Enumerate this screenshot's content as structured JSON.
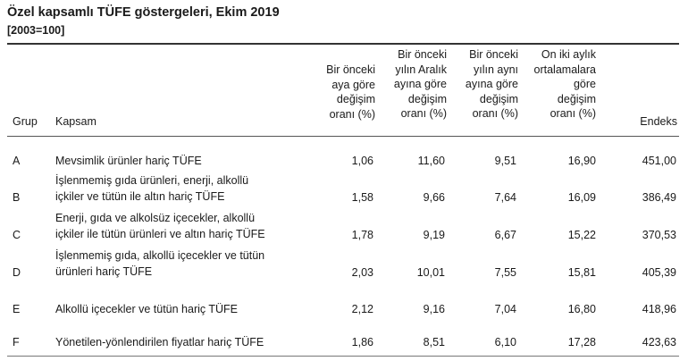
{
  "title": "Özel kapsamlı TÜFE göstergeleri, Ekim 2019",
  "subtitle": "[2003=100]",
  "headers": {
    "grup": "Grup",
    "kapsam": "Kapsam",
    "col1": [
      "Bir önceki",
      "aya göre",
      "değişim",
      "oranı (%)"
    ],
    "col2": [
      "Bir önceki",
      "yılın Aralık",
      "ayına göre",
      "değişim",
      "oranı (%)"
    ],
    "col3": [
      "Bir önceki",
      "yılın aynı",
      "ayına göre",
      "değişim",
      "oranı (%)"
    ],
    "col4": [
      "On iki aylık",
      "ortalamalara",
      "göre",
      "değişim",
      "oranı (%)"
    ],
    "endeks": "Endeks"
  },
  "rows": [
    {
      "grup": "A",
      "kapsam": [
        "Mevsimlik ürünler hariç TÜFE"
      ],
      "v1": "1,06",
      "v2": "11,60",
      "v3": "9,51",
      "v4": "16,90",
      "endeks": "451,00"
    },
    {
      "grup": "B",
      "kapsam": [
        "İşlenmemiş gıda ürünleri, enerji, alkollü",
        "içkiler ve tütün ile altın hariç TÜFE"
      ],
      "v1": "1,58",
      "v2": "9,66",
      "v3": "7,64",
      "v4": "16,09",
      "endeks": "386,49"
    },
    {
      "grup": "C",
      "kapsam": [
        "Enerji, gıda ve alkolsüz içecekler, alkollü",
        "içkiler ile tütün ürünleri ve altın hariç TÜFE"
      ],
      "v1": "1,78",
      "v2": "9,19",
      "v3": "6,67",
      "v4": "15,22",
      "endeks": "370,53"
    },
    {
      "grup": "D",
      "kapsam": [
        "İşlenmemiş gıda, alkollü içecekler ve tütün",
        "ürünleri hariç TÜFE"
      ],
      "v1": "2,03",
      "v2": "10,01",
      "v3": "7,55",
      "v4": "15,81",
      "endeks": "405,39"
    },
    {
      "grup": "E",
      "kapsam": [
        "Alkollü içecekler ve tütün hariç TÜFE"
      ],
      "v1": "2,12",
      "v2": "9,16",
      "v3": "7,04",
      "v4": "16,80",
      "endeks": "418,96"
    },
    {
      "grup": "F",
      "kapsam": [
        "Yönetilen-yönlendirilen fiyatlar hariç TÜFE"
      ],
      "v1": "1,86",
      "v2": "8,51",
      "v3": "6,10",
      "v4": "17,28",
      "endeks": "423,63"
    }
  ]
}
